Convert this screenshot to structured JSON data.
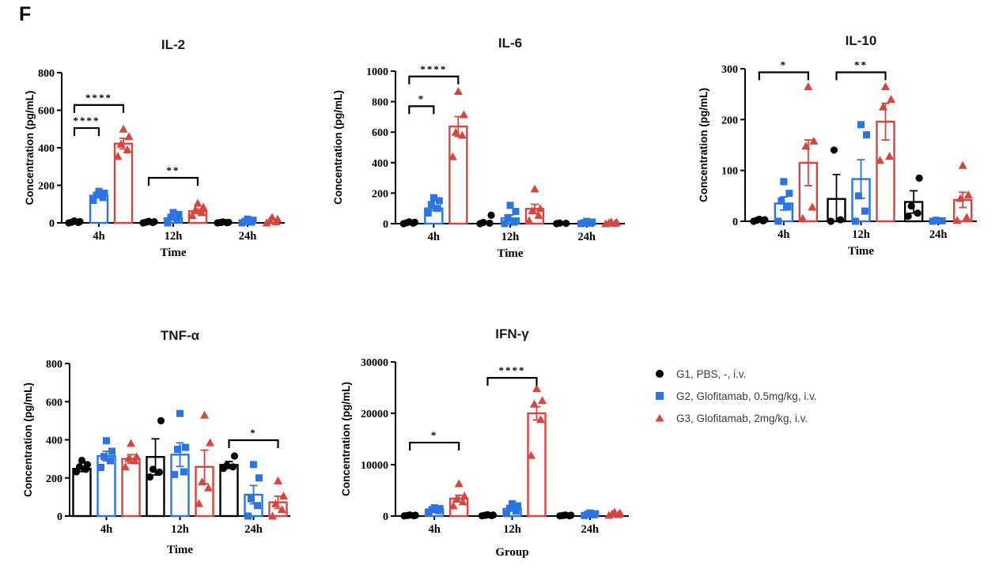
{
  "panel_label": "F",
  "legend": {
    "position": "right-of-bottom-row",
    "items": [
      {
        "label": "G1, PBS, -, i.v.",
        "marker": "circle",
        "color": "#000000"
      },
      {
        "label": "G2, Glofitamab, 0.5mg/kg, i.v.",
        "marker": "square",
        "color": "#2b74e4"
      },
      {
        "label": "G3, Glofitamab, 2mg/kg, i.v.",
        "marker": "triangle",
        "color": "#d9453e"
      }
    ]
  },
  "chart_data": {
    "type": "bar",
    "subtype": "grouped bars (mean) with SEM error bars and jittered scatter points",
    "grid": false,
    "categories": [
      "4h",
      "12h",
      "24h"
    ],
    "charts": [
      {
        "id": "il2",
        "title": "IL-2",
        "xlabel": "Time",
        "ylabel": "Concentration (pg/mL)",
        "categories": [
          "4h",
          "12h",
          "24h"
        ],
        "ylim": [
          0,
          800
        ],
        "yticks": [
          0,
          200,
          400,
          600,
          800
        ],
        "series": [
          {
            "name": "G1, PBS, -, i.v.",
            "means": [
              5,
              3,
              2
            ],
            "errors": [
              2,
              1,
              1
            ],
            "points": [
              [
                0,
                2,
                4,
                7,
                10
              ],
              [
                0,
                2,
                4,
                6,
                8
              ],
              [
                0,
                1,
                2,
                3,
                5
              ]
            ]
          },
          {
            "name": "G2, Glofitamab, 0.5mg/kg, i.v.",
            "means": [
              145,
              25,
              8
            ],
            "errors": [
              10,
              8,
              3
            ],
            "points": [
              [
                120,
                135,
                148,
                158,
                168
              ],
              [
                0,
                15,
                30,
                45,
                55
              ],
              [
                0,
                4,
                8,
                14,
                20
              ]
            ]
          },
          {
            "name": "G3, Glofitamab, 2mg/kg, i.v.",
            "means": [
              422,
              62,
              12
            ],
            "errors": [
              28,
              12,
              4
            ],
            "points": [
              [
                355,
                390,
                420,
                460,
                500
              ],
              [
                40,
                55,
                70,
                85,
                105
              ],
              [
                0,
                6,
                12,
                20,
                30
              ]
            ]
          }
        ],
        "significance": [
          {
            "cat": 0,
            "from": 0,
            "to": 1,
            "y": 505,
            "label": "****"
          },
          {
            "cat": 0,
            "from": 0,
            "to": 2,
            "y": 628,
            "label": "****"
          },
          {
            "cat": 1,
            "from": 0,
            "to": 2,
            "y": 240,
            "label": "**"
          }
        ]
      },
      {
        "id": "il6",
        "title": "IL-6",
        "xlabel": "Time",
        "ylabel": "Concentration (pg/mL)",
        "categories": [
          "4h",
          "12h",
          "24h"
        ],
        "ylim": [
          0,
          1000
        ],
        "yticks": [
          0,
          200,
          400,
          600,
          800,
          1000
        ],
        "series": [
          {
            "name": "G1, PBS, -, i.v.",
            "means": [
              8,
              15,
              3
            ],
            "errors": [
              3,
              8,
              1
            ],
            "points": [
              [
                0,
                3,
                6,
                9,
                12
              ],
              [
                0,
                3,
                8,
                55
              ],
              [
                0,
                2,
                4
              ]
            ]
          },
          {
            "name": "G2, Glofitamab, 0.5mg/kg, i.v.",
            "means": [
              100,
              35,
              8
            ],
            "errors": [
              15,
              22,
              3
            ],
            "points": [
              [
                70,
                100,
                125,
                150,
                170
              ],
              [
                0,
                10,
                40,
                80,
                120
              ],
              [
                0,
                3,
                6,
                10,
                15
              ]
            ]
          },
          {
            "name": "G3, Glofitamab, 2mg/kg, i.v.",
            "means": [
              637,
              97,
              6
            ],
            "errors": [
              65,
              30,
              2
            ],
            "points": [
              [
                440,
                580,
                600,
                715,
                868
              ],
              [
                20,
                55,
                85,
                100,
                228
              ],
              [
                0,
                3,
                6,
                9,
                12
              ]
            ]
          }
        ],
        "significance": [
          {
            "cat": 0,
            "from": 0,
            "to": 1,
            "y": 770,
            "label": "*"
          },
          {
            "cat": 0,
            "from": 0,
            "to": 2,
            "y": 965,
            "label": "****"
          }
        ]
      },
      {
        "id": "il10",
        "title": "IL-10",
        "xlabel": "Time",
        "ylabel": "Concentration (pg/mL)",
        "categories": [
          "4h",
          "12h",
          "24h"
        ],
        "ylim": [
          0,
          300
        ],
        "yticks": [
          0,
          100,
          200,
          300
        ],
        "series": [
          {
            "name": "G1, PBS, -, i.v.",
            "means": [
              2,
              44,
              38
            ],
            "errors": [
              1,
              48,
              22
            ],
            "points": [
              [
                0,
                1,
                2,
                3,
                4
              ],
              [
                0,
                3,
                140
              ],
              [
                10,
                16,
                30,
                85
              ]
            ]
          },
          {
            "name": "G2, Glofitamab, 0.5mg/kg, i.v.",
            "means": [
              35,
              83,
              2
            ],
            "errors": [
              13,
              38,
              1
            ],
            "points": [
              [
                0,
                28,
                40,
                55,
                78
              ],
              [
                0,
                20,
                50,
                170,
                190
              ],
              [
                0,
                1,
                2
              ]
            ]
          },
          {
            "name": "G3, Glofitamab, 2mg/kg, i.v.",
            "means": [
              115,
              196,
              42
            ],
            "errors": [
              45,
              36,
              15
            ],
            "points": [
              [
                6,
                28,
                148,
                158,
                265
              ],
              [
                120,
                128,
                225,
                240,
                265
              ],
              [
                2,
                8,
                45,
                52,
                110
              ]
            ]
          }
        ],
        "significance": [
          {
            "cat": 0,
            "from": 0,
            "to": 2,
            "y": 293,
            "label": "*"
          },
          {
            "cat": 1,
            "from": 0,
            "to": 2,
            "y": 293,
            "label": "**"
          }
        ]
      },
      {
        "id": "tnfa",
        "title": "TNF-α",
        "xlabel": "Time",
        "ylabel": "Concentration (pg/mL)",
        "categories": [
          "4h",
          "12h",
          "24h"
        ],
        "ylim": [
          0,
          800
        ],
        "yticks": [
          0,
          200,
          400,
          600,
          800
        ],
        "series": [
          {
            "name": "G1, PBS, -, i.v.",
            "means": [
              248,
              310,
              268
            ],
            "errors": [
              15,
              95,
              18
            ],
            "points": [
              [
                232,
                245,
                258,
                270,
                292
              ],
              [
                205,
                230,
                245,
                500
              ],
              [
                250,
                258,
                264,
                315
              ]
            ]
          },
          {
            "name": "G2, Glofitamab, 0.5mg/kg, i.v.",
            "means": [
              315,
              322,
              112
            ],
            "errors": [
              25,
              62,
              48
            ],
            "points": [
              [
                255,
                290,
                312,
                340,
                395
              ],
              [
                218,
                232,
                350,
                360,
                538
              ],
              [
                0,
                55,
                90,
                200,
                270
              ]
            ]
          },
          {
            "name": "G3, Glofitamab, 2mg/kg, i.v.",
            "means": [
              300,
              258,
              72
            ],
            "errors": [
              22,
              88,
              32
            ],
            "points": [
              [
                258,
                290,
                302,
                312,
                382
              ],
              [
                66,
                148,
                180,
                385,
                530
              ],
              [
                0,
                35,
                65,
                105,
                185
              ]
            ]
          }
        ],
        "significance": [
          {
            "cat": 2,
            "from": 0,
            "to": 2,
            "y": 398,
            "label": "*"
          }
        ]
      },
      {
        "id": "ifng",
        "title": "IFN-γ",
        "xlabel": "Group",
        "ylabel": "Concentration (pg/mL)",
        "categories": [
          "4h",
          "12h",
          "24h"
        ],
        "ylim": [
          0,
          30000
        ],
        "yticks": [
          0,
          10000,
          20000,
          30000
        ],
        "series": [
          {
            "name": "G1, PBS, -, i.v.",
            "means": [
              120,
              150,
              100
            ],
            "errors": [
              40,
              50,
              30
            ],
            "points": [
              [
                40,
                80,
                120,
                160,
                200
              ],
              [
                50,
                100,
                150,
                200,
                250
              ],
              [
                30,
                70,
                110,
                150,
                190
              ]
            ]
          },
          {
            "name": "G2, Glofitamab, 0.5mg/kg, i.v.",
            "means": [
              1250,
              1400,
              350
            ],
            "errors": [
              150,
              280,
              80
            ],
            "points": [
              [
                800,
                1050,
                1250,
                1450,
                1600
              ],
              [
                500,
                1000,
                1500,
                2000,
                2400
              ],
              [
                100,
                250,
                350,
                450,
                600
              ]
            ]
          },
          {
            "name": "G3, Glofitamab, 2mg/kg, i.v.",
            "means": [
              3400,
              20000,
              420
            ],
            "errors": [
              650,
              1300,
              120
            ],
            "points": [
              [
                2000,
                2800,
                3300,
                3900,
                6300
              ],
              [
                11800,
                18800,
                21800,
                22500,
                24800
              ],
              [
                150,
                300,
                450,
                600,
                800
              ]
            ]
          }
        ],
        "significance": [
          {
            "cat": 0,
            "from": 0,
            "to": 2,
            "y": 14300,
            "label": "*"
          },
          {
            "cat": 1,
            "from": 0,
            "to": 2,
            "y": 26900,
            "label": "****"
          }
        ]
      }
    ]
  }
}
